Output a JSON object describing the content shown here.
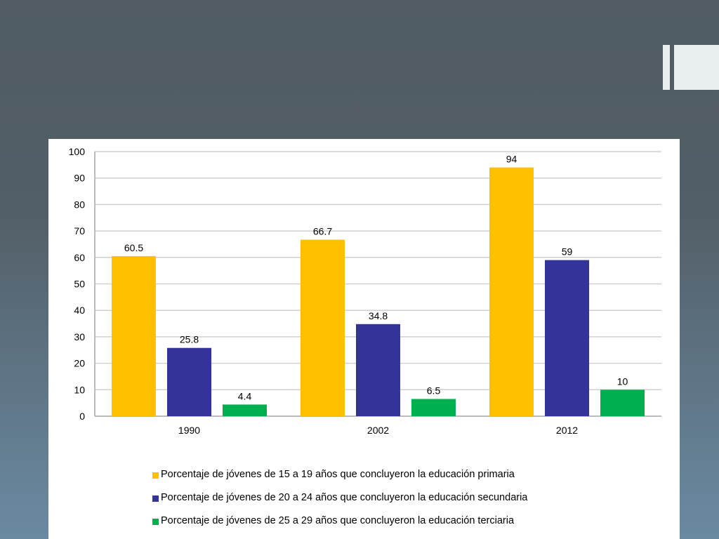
{
  "chart_data": {
    "type": "bar",
    "title": "",
    "xlabel": "",
    "ylabel": "",
    "categories": [
      "1990",
      "2002",
      "2012"
    ],
    "ylim": [
      0,
      100
    ],
    "yticks": [
      0,
      10,
      20,
      30,
      40,
      50,
      60,
      70,
      80,
      90,
      100
    ],
    "grid": true,
    "legend_position": "bottom",
    "series": [
      {
        "name": "Porcentaje de jóvenes de 15 a 19 años que concluyeron la educación primaria",
        "color": "#ffc000",
        "values": [
          60.5,
          66.7,
          94
        ],
        "labels": [
          "60.5",
          "66.7",
          "94"
        ]
      },
      {
        "name": "Porcentaje de jóvenes de 20 a 24 años que concluyeron la educación secundaria",
        "color": "#333399",
        "values": [
          25.8,
          34.8,
          59
        ],
        "labels": [
          "25.8",
          "34.8",
          "59"
        ]
      },
      {
        "name": "Porcentaje de jóvenes de 25 a 29 años que concluyeron la educación terciaria",
        "color": "#00b050",
        "values": [
          4.4,
          6.5,
          10
        ],
        "labels": [
          "4.4",
          "6.5",
          "10"
        ]
      }
    ]
  }
}
